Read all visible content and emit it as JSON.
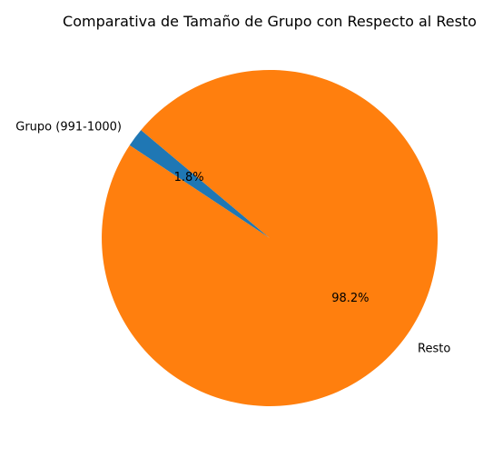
{
  "chart_data": {
    "type": "pie",
    "title": "Comparativa de Tamaño de Grupo con Respecto al Resto",
    "slices": [
      {
        "label": "Grupo (991-1000)",
        "value": 1.8,
        "pct_label": "1.8%",
        "color": "#1f77b4"
      },
      {
        "label": "Resto",
        "value": 98.2,
        "pct_label": "98.2%",
        "color": "#ff7f0e"
      }
    ],
    "start_angle_deg": 140,
    "direction": "counterclockwise"
  }
}
